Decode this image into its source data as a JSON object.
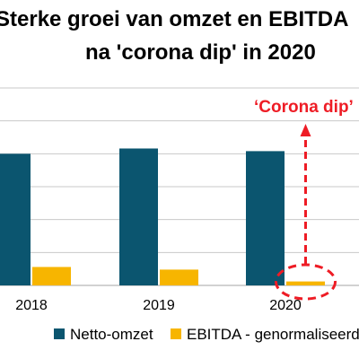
{
  "colors": {
    "netto": "#0b556f",
    "ebitda": "#f7b500",
    "annotation": "#ee1c25",
    "grid": "#c9c9c9"
  },
  "chart_data": {
    "type": "bar",
    "title": [
      "Sterke groei van omzet en EBITDA",
      "na 'corona dip' in 2020"
    ],
    "categories": [
      "2018",
      "2019",
      "2020"
    ],
    "series": [
      {
        "name": "Netto-omzet",
        "values": [
          100,
          104,
          102
        ]
      },
      {
        "name": "EBITDA - genormaliseerd",
        "values": [
          14,
          12,
          3
        ]
      }
    ],
    "ylim": [
      0,
      150
    ],
    "grid": true,
    "legend": "bottom",
    "annotation": {
      "text": "‘Corona dip’",
      "target": "2020"
    }
  }
}
